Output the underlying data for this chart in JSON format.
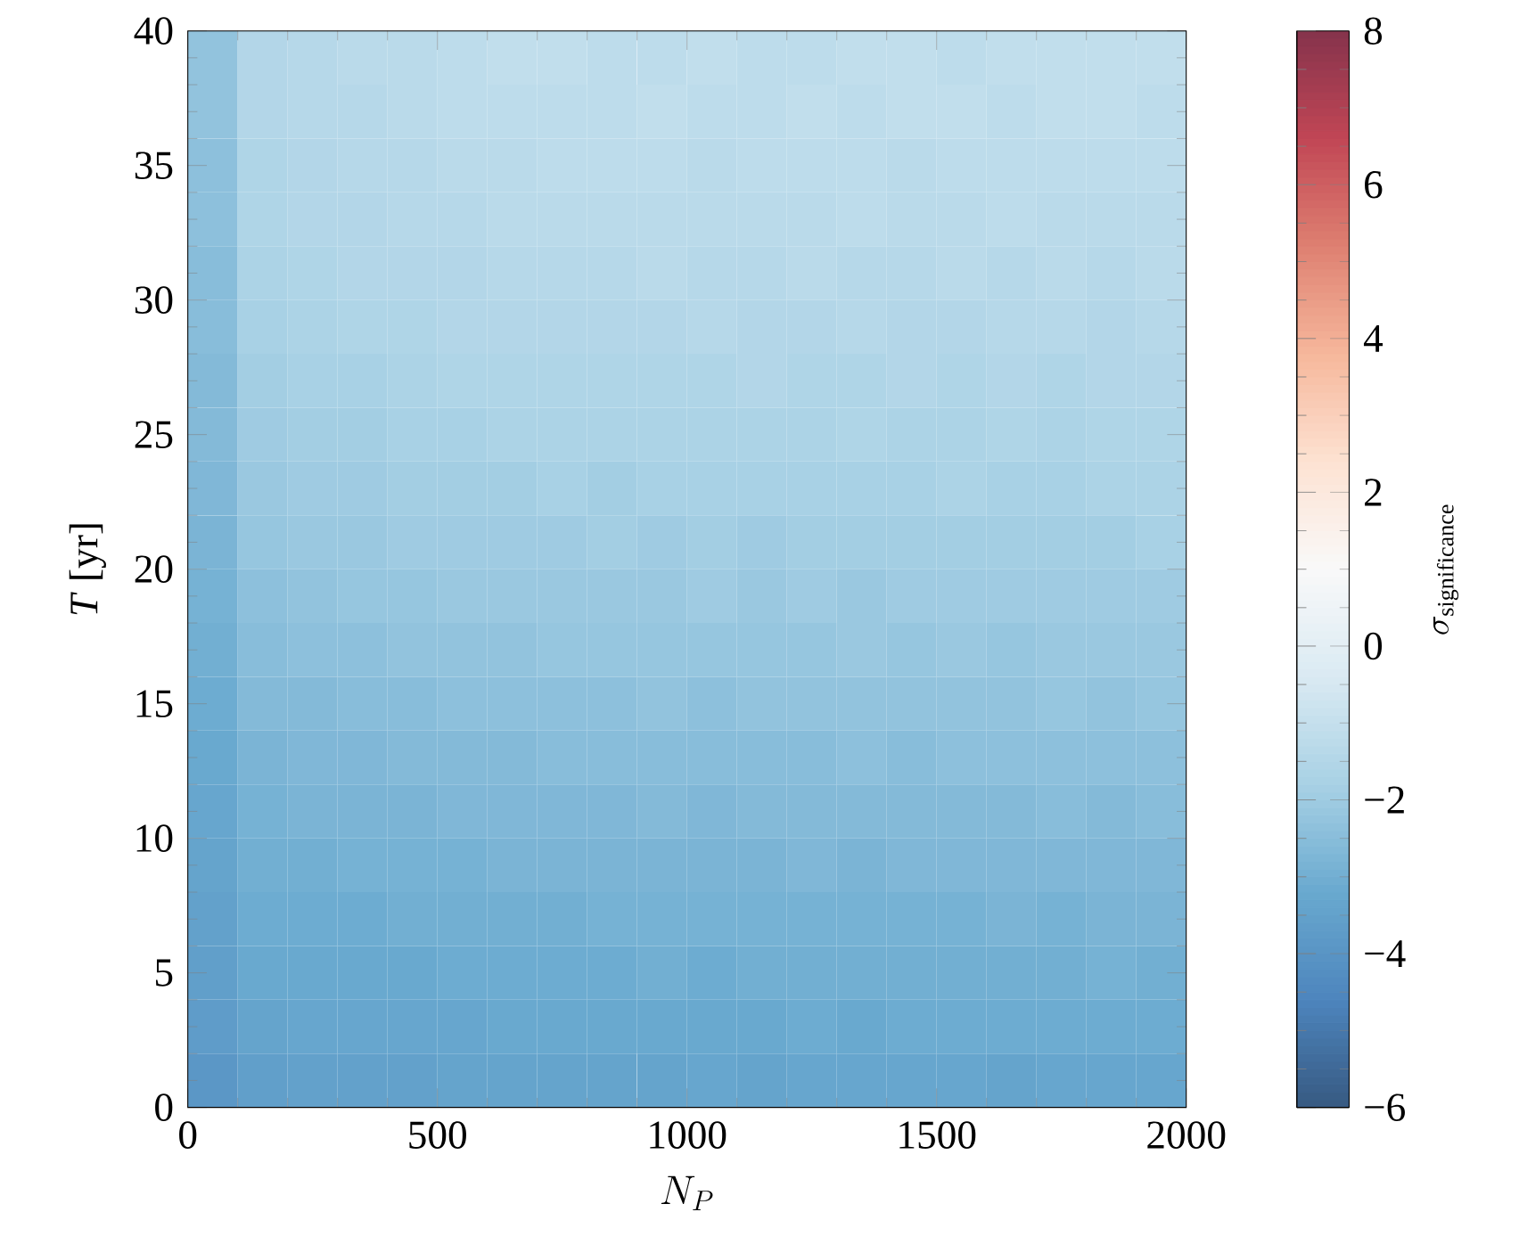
{
  "chart_data": {
    "type": "heatmap",
    "xlabel": "N_P",
    "ylabel": "*T* [yr]",
    "clabel": "\\sigma_{\\mathrm{significance}}",
    "x": [
      50,
      150,
      250,
      350,
      450,
      550,
      650,
      750,
      850,
      950,
      1050,
      1150,
      1250,
      1350,
      1450,
      1550,
      1650,
      1750,
      1850,
      1950
    ],
    "y": [
      39,
      37,
      35,
      33,
      31,
      29,
      27,
      25,
      23,
      21,
      19,
      17,
      15,
      13,
      11,
      9,
      7,
      5,
      3,
      1
    ],
    "xlim": [
      0,
      2000
    ],
    "xticks": [
      0,
      500,
      1000,
      1500,
      2000
    ],
    "ylim": [
      0,
      40
    ],
    "yticks": [
      0,
      5,
      10,
      15,
      20,
      25,
      30,
      35,
      40
    ],
    "clim": [
      -6,
      8
    ],
    "cticks": [
      {
        "value": -6,
        "label": "−6"
      },
      {
        "value": -4,
        "label": "−4"
      },
      {
        "value": -2,
        "label": "−2"
      },
      0,
      2,
      4,
      6,
      8
    ],
    "cells": [
      [
        -2.3,
        -1.5,
        -1.4,
        -1.3,
        -1.3,
        -1.2,
        -1.1,
        -1.1,
        -1.2,
        -1.2,
        -1.1,
        -1.2,
        -1.2,
        -1.1,
        -1.1,
        -1.2,
        -1.1,
        -1.1,
        -1.1,
        -1.1
      ],
      [
        -2.3,
        -1.5,
        -1.4,
        -1.4,
        -1.3,
        -1.2,
        -1.2,
        -1.2,
        -1.2,
        -1.1,
        -1.2,
        -1.2,
        -1.1,
        -1.2,
        -1.1,
        -1.1,
        -1.2,
        -1.1,
        -1.1,
        -1.2
      ],
      [
        -2.4,
        -1.6,
        -1.5,
        -1.4,
        -1.4,
        -1.3,
        -1.3,
        -1.2,
        -1.2,
        -1.2,
        -1.3,
        -1.2,
        -1.2,
        -1.2,
        -1.3,
        -1.2,
        -1.2,
        -1.2,
        -1.2,
        -1.2
      ],
      [
        -2.4,
        -1.6,
        -1.5,
        -1.5,
        -1.4,
        -1.4,
        -1.3,
        -1.3,
        -1.3,
        -1.3,
        -1.3,
        -1.3,
        -1.3,
        -1.2,
        -1.3,
        -1.3,
        -1.2,
        -1.3,
        -1.3,
        -1.3
      ],
      [
        -2.5,
        -1.7,
        -1.6,
        -1.5,
        -1.5,
        -1.5,
        -1.4,
        -1.4,
        -1.4,
        -1.3,
        -1.4,
        -1.4,
        -1.3,
        -1.4,
        -1.4,
        -1.3,
        -1.4,
        -1.3,
        -1.4,
        -1.3
      ],
      [
        -2.5,
        -1.8,
        -1.7,
        -1.6,
        -1.6,
        -1.5,
        -1.5,
        -1.5,
        -1.5,
        -1.5,
        -1.4,
        -1.5,
        -1.5,
        -1.4,
        -1.5,
        -1.5,
        -1.4,
        -1.4,
        -1.5,
        -1.4
      ],
      [
        -2.6,
        -1.9,
        -1.8,
        -1.8,
        -1.7,
        -1.6,
        -1.6,
        -1.6,
        -1.6,
        -1.6,
        -1.6,
        -1.5,
        -1.6,
        -1.6,
        -1.5,
        -1.6,
        -1.5,
        -1.6,
        -1.5,
        -1.5
      ],
      [
        -2.6,
        -2.0,
        -1.9,
        -1.9,
        -1.8,
        -1.8,
        -1.7,
        -1.7,
        -1.7,
        -1.7,
        -1.7,
        -1.7,
        -1.7,
        -1.6,
        -1.7,
        -1.7,
        -1.6,
        -1.7,
        -1.6,
        -1.6
      ],
      [
        -2.7,
        -2.1,
        -2.0,
        -2.0,
        -1.9,
        -1.9,
        -1.9,
        -1.8,
        -1.9,
        -1.8,
        -1.8,
        -1.8,
        -1.8,
        -1.8,
        -1.8,
        -1.7,
        -1.8,
        -1.8,
        -1.7,
        -1.7
      ],
      [
        -2.8,
        -2.2,
        -2.1,
        -2.1,
        -2.0,
        -2.0,
        -2.0,
        -2.0,
        -1.9,
        -2.0,
        -1.9,
        -2.0,
        -1.9,
        -1.9,
        -1.9,
        -1.9,
        -1.9,
        -1.9,
        -1.9,
        -1.8
      ],
      [
        -2.9,
        -2.4,
        -2.3,
        -2.2,
        -2.2,
        -2.1,
        -2.1,
        -2.1,
        -2.1,
        -2.1,
        -2.0,
        -2.1,
        -2.0,
        -2.1,
        -2.0,
        -2.0,
        -2.0,
        -2.0,
        -2.0,
        -2.0
      ],
      [
        -3.0,
        -2.5,
        -2.4,
        -2.4,
        -2.3,
        -2.3,
        -2.3,
        -2.2,
        -2.2,
        -2.2,
        -2.2,
        -2.2,
        -2.2,
        -2.1,
        -2.2,
        -2.1,
        -2.2,
        -2.1,
        -2.1,
        -2.1
      ],
      [
        -3.1,
        -2.6,
        -2.6,
        -2.5,
        -2.5,
        -2.4,
        -2.4,
        -2.4,
        -2.4,
        -2.3,
        -2.4,
        -2.3,
        -2.3,
        -2.3,
        -2.3,
        -2.3,
        -2.3,
        -2.2,
        -2.3,
        -2.2
      ],
      [
        -3.2,
        -2.8,
        -2.7,
        -2.7,
        -2.6,
        -2.6,
        -2.6,
        -2.5,
        -2.5,
        -2.5,
        -2.5,
        -2.5,
        -2.5,
        -2.4,
        -2.5,
        -2.4,
        -2.4,
        -2.4,
        -2.4,
        -2.4
      ],
      [
        -3.3,
        -2.9,
        -2.8,
        -2.8,
        -2.8,
        -2.7,
        -2.7,
        -2.7,
        -2.7,
        -2.6,
        -2.7,
        -2.6,
        -2.6,
        -2.6,
        -2.6,
        -2.6,
        -2.6,
        -2.5,
        -2.6,
        -2.5
      ],
      [
        -3.4,
        -3.0,
        -3.0,
        -2.9,
        -2.9,
        -2.9,
        -2.8,
        -2.8,
        -2.8,
        -2.8,
        -2.8,
        -2.8,
        -2.7,
        -2.8,
        -2.7,
        -2.7,
        -2.7,
        -2.7,
        -2.7,
        -2.7
      ],
      [
        -3.5,
        -3.1,
        -3.1,
        -3.1,
        -3.0,
        -3.0,
        -3.0,
        -3.0,
        -2.9,
        -2.9,
        -2.9,
        -2.9,
        -2.9,
        -2.9,
        -2.9,
        -2.9,
        -2.8,
        -2.9,
        -2.8,
        -2.8
      ],
      [
        -3.6,
        -3.2,
        -3.2,
        -3.2,
        -3.2,
        -3.1,
        -3.1,
        -3.1,
        -3.1,
        -3.0,
        -3.1,
        -3.0,
        -3.0,
        -3.0,
        -3.0,
        -3.0,
        -3.0,
        -3.0,
        -2.9,
        -3.0
      ],
      [
        -3.7,
        -3.4,
        -3.3,
        -3.3,
        -3.3,
        -3.3,
        -3.2,
        -3.2,
        -3.2,
        -3.2,
        -3.2,
        -3.2,
        -3.1,
        -3.2,
        -3.1,
        -3.1,
        -3.1,
        -3.1,
        -3.1,
        -3.1
      ],
      [
        -3.9,
        -3.6,
        -3.5,
        -3.5,
        -3.5,
        -3.4,
        -3.4,
        -3.4,
        -3.4,
        -3.4,
        -3.3,
        -3.4,
        -3.3,
        -3.3,
        -3.3,
        -3.3,
        -3.4,
        -3.3,
        -3.3,
        -3.3
      ]
    ]
  }
}
